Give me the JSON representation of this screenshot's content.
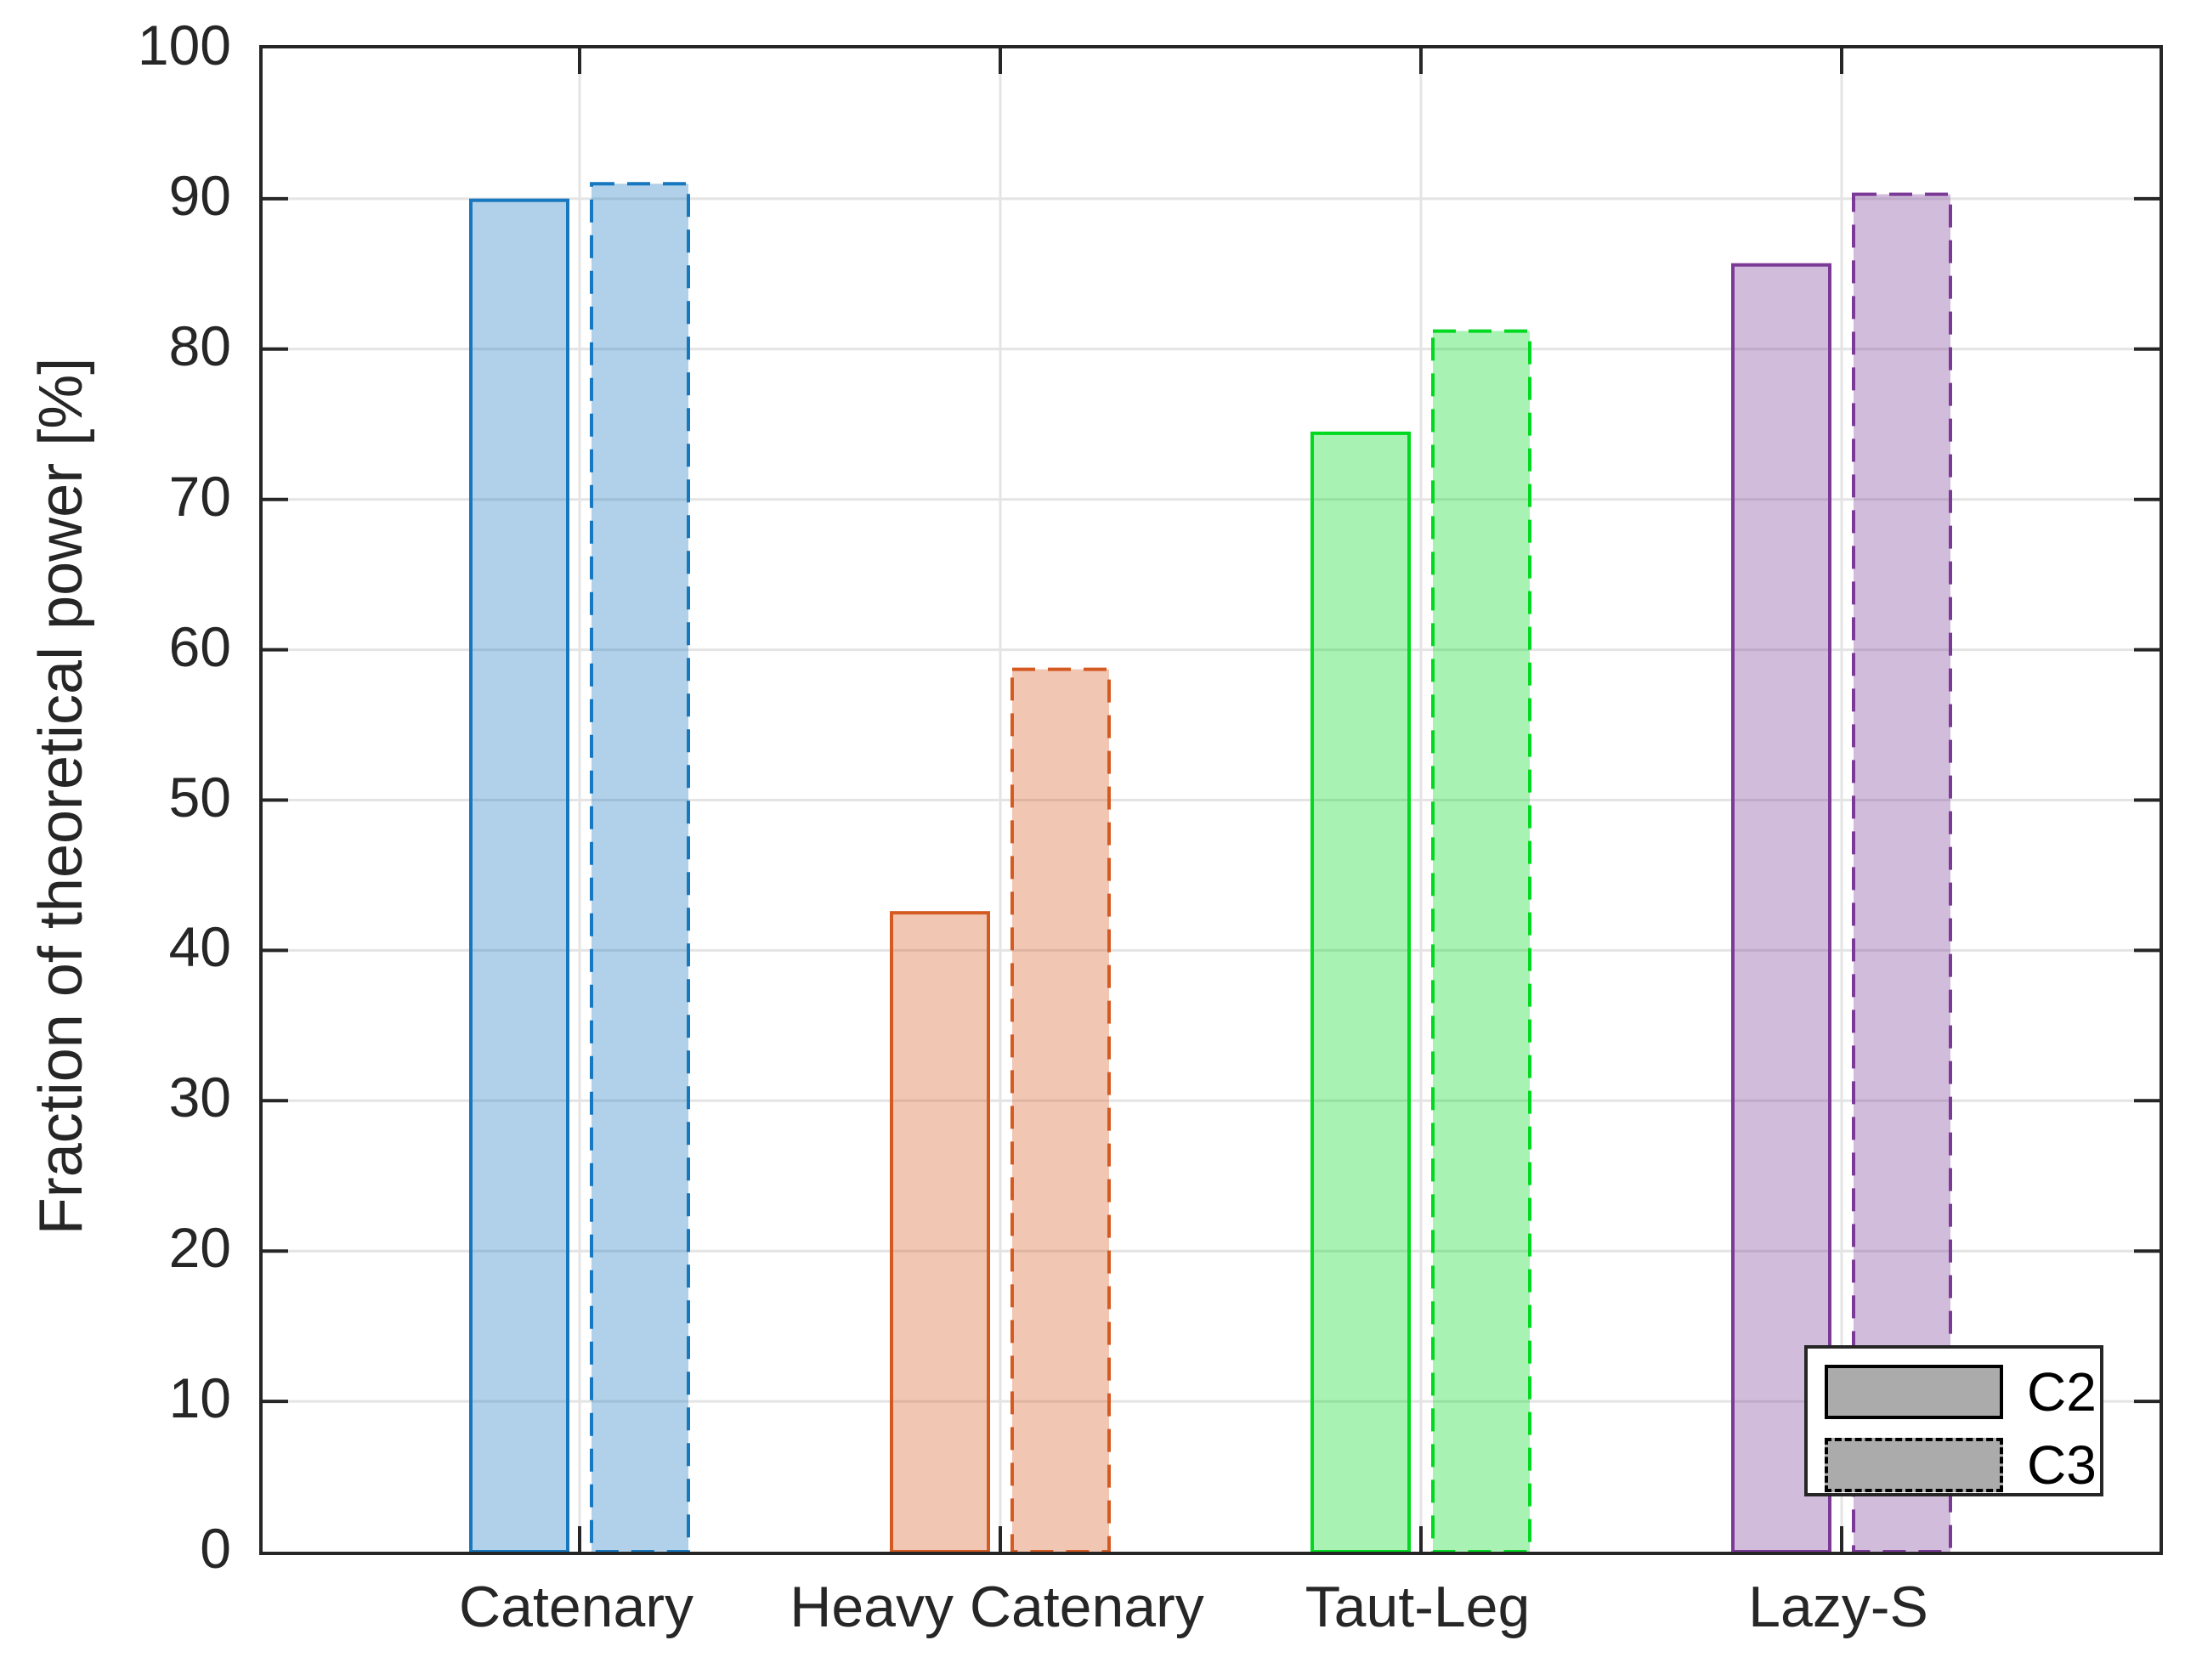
{
  "chart_data": {
    "type": "bar",
    "title": "",
    "xlabel": "",
    "ylabel": "Fraction of theoretical power [%]",
    "ylim": [
      0,
      100
    ],
    "yticks": [
      0,
      10,
      20,
      30,
      40,
      50,
      60,
      70,
      80,
      90,
      100
    ],
    "grid": "on",
    "categories": [
      "Catenary",
      "Heavy Catenary",
      "Taut-Leg",
      "Lazy-S"
    ],
    "series": [
      {
        "name": "C2",
        "border_style": "solid",
        "values": [
          89.9,
          42.5,
          74.4,
          85.6
        ]
      },
      {
        "name": "C3",
        "border_style": "dashed",
        "values": [
          91.0,
          58.7,
          81.2,
          90.3
        ]
      }
    ],
    "category_colors": [
      {
        "category": "Catenary",
        "edge": "#1777BF"
      },
      {
        "category": "Heavy Catenary",
        "edge": "#D55A22"
      },
      {
        "category": "Taut-Leg",
        "edge": "#00D91F"
      },
      {
        "category": "Lazy-S",
        "edge": "#7B3A96"
      }
    ],
    "fill_alpha": 0.34,
    "axis_color": "#262626",
    "grid_color": "#E4E4E4",
    "legend": {
      "position": "bottom-right",
      "swatch_fill": "#ABABAB",
      "swatch_edge": "#000000"
    }
  }
}
